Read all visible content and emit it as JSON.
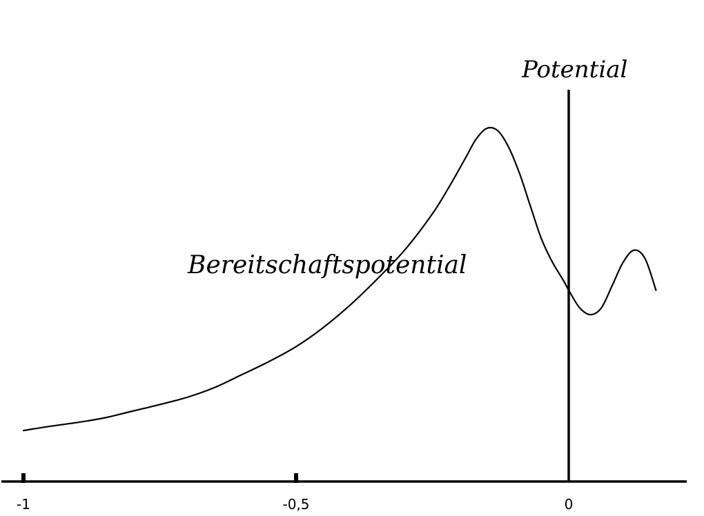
{
  "chart_data": {
    "type": "line",
    "title": "",
    "xlabel": "",
    "ylabel": "",
    "xlim": [
      -1.0,
      0.33
    ],
    "ylim": [
      0,
      1.0
    ],
    "grid": false,
    "legend": "none",
    "colors": {
      "line": "#000000",
      "background": "#ffffff"
    },
    "ticks": [
      {
        "value": -1,
        "label": "-1"
      },
      {
        "value": -0.5,
        "label": "-0,5"
      },
      {
        "value": 0,
        "label": "0"
      }
    ],
    "series": [
      {
        "x": [
          -1.0,
          -0.95,
          -0.9,
          -0.85,
          -0.8,
          -0.75,
          -0.7,
          -0.65,
          -0.6,
          -0.55,
          -0.5,
          -0.45,
          -0.4,
          -0.35,
          -0.3,
          -0.25,
          -0.22,
          -0.19,
          -0.17,
          -0.15,
          -0.13,
          -0.11,
          -0.09,
          -0.07,
          -0.05,
          -0.03,
          -0.01,
          0.0,
          0.02,
          0.04,
          0.06,
          0.08,
          0.1,
          0.12,
          0.14,
          0.16
        ],
        "y": [
          0.035,
          0.049,
          0.061,
          0.076,
          0.097,
          0.118,
          0.141,
          0.172,
          0.213,
          0.255,
          0.303,
          0.364,
          0.437,
          0.521,
          0.613,
          0.727,
          0.811,
          0.903,
          0.965,
          1.0,
          0.992,
          0.939,
          0.855,
          0.75,
          0.647,
          0.573,
          0.515,
          0.483,
          0.427,
          0.405,
          0.427,
          0.499,
          0.573,
          0.611,
          0.584,
          0.483
        ]
      }
    ],
    "annotations": [
      {
        "id": "bereitschaftspotential",
        "text": "Bereitschaftspotential"
      },
      {
        "id": "potential",
        "text": "Potential"
      }
    ]
  }
}
